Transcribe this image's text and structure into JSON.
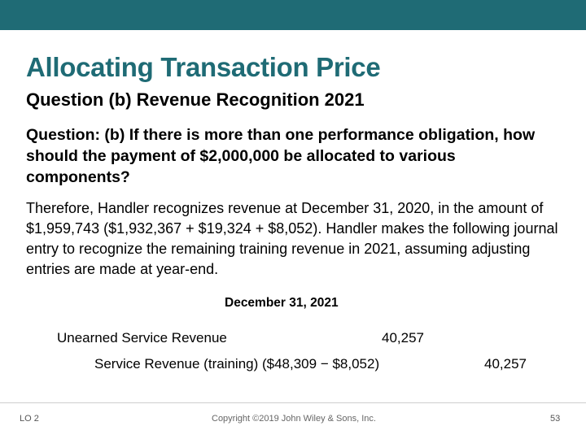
{
  "slide": {
    "title": "Allocating Transaction Price",
    "subtitle": "Question (b) Revenue Recognition 2021",
    "question": "Question: (b) If there is more than one performance obligation, how should the payment of $2,000,000 be allocated to various components?",
    "paragraph": "Therefore, Handler recognizes revenue at December 31, 2020, in the amount of $1,959,743 ($1,932,367 + $19,324 + $8,052). Handler makes the following journal entry to recognize the remaining training revenue in 2021, assuming adjusting entries are made at year-end."
  },
  "journal_entry": {
    "date": "December 31, 2021",
    "debit_account": "Unearned Service Revenue",
    "debit_amount": "40,257",
    "credit_account": "Service Revenue (training) ($48,309 − $8,052)",
    "credit_amount": "40,257"
  },
  "footer": {
    "lo": "LO 2",
    "copyright": "Copyright ©2019 John Wiley & Sons, Inc.",
    "page": "53"
  },
  "colors": {
    "accent": "#1f6b75"
  }
}
